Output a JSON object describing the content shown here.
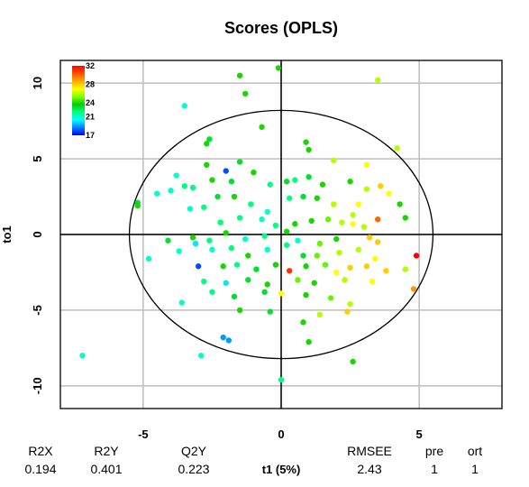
{
  "chart_data": {
    "type": "scatter",
    "title": "Scores (OPLS)",
    "xlabel": "t1 (5%)",
    "ylabel": "to1",
    "xlim": [
      -8,
      8
    ],
    "ylim": [
      -11.5,
      11.5
    ],
    "xticks": [
      -5,
      0,
      5
    ],
    "yticks": [
      -10,
      -5,
      0,
      5,
      10
    ],
    "grid": true,
    "hotelling_ellipse": {
      "cx": 0,
      "cy": 0,
      "rx": 5.5,
      "ry": 8.2
    },
    "colorbar": {
      "placement": "top-left",
      "ticks": [
        32,
        28,
        24,
        21,
        17
      ],
      "min": 17,
      "max": 32,
      "colors": [
        "#0000ff",
        "#0080ff",
        "#00ffff",
        "#00ff80",
        "#00cc00",
        "#80ff00",
        "#ffff00",
        "#ffaa00",
        "#ff5500",
        "#ff0000"
      ]
    },
    "stats_headers": [
      "R2X",
      "R2Y",
      "Q2Y",
      "RMSEE",
      "pre",
      "ort"
    ],
    "stats_values": [
      "0.194",
      "0.401",
      "0.223",
      "2.43",
      "1",
      "1"
    ],
    "points": [
      {
        "x": -7.2,
        "y": -8.0,
        "c": 21
      },
      {
        "x": -3.5,
        "y": 8.5,
        "c": 21
      },
      {
        "x": -2.7,
        "y": 6.0,
        "c": 24
      },
      {
        "x": -2.6,
        "y": 6.3,
        "c": 23
      },
      {
        "x": -1.5,
        "y": 10.5,
        "c": 24
      },
      {
        "x": -1.3,
        "y": 9.3,
        "c": 24
      },
      {
        "x": -0.7,
        "y": 7.1,
        "c": 24
      },
      {
        "x": -0.1,
        "y": 11.0,
        "c": 24
      },
      {
        "x": 0.9,
        "y": 6.1,
        "c": 24
      },
      {
        "x": 1.0,
        "y": 5.6,
        "c": 24
      },
      {
        "x": 3.5,
        "y": 10.2,
        "c": 26
      },
      {
        "x": 4.2,
        "y": 5.7,
        "c": 26
      },
      {
        "x": -3.8,
        "y": 3.9,
        "c": 21
      },
      {
        "x": -3.2,
        "y": 3.1,
        "c": 22
      },
      {
        "x": -5.2,
        "y": 2.1,
        "c": 23
      },
      {
        "x": -5.2,
        "y": 1.9,
        "c": 24
      },
      {
        "x": -4.5,
        "y": 2.7,
        "c": 21
      },
      {
        "x": -4.0,
        "y": 2.9,
        "c": 21
      },
      {
        "x": -3.5,
        "y": 3.2,
        "c": 22
      },
      {
        "x": -2.7,
        "y": 4.6,
        "c": 24
      },
      {
        "x": -2.0,
        "y": 4.2,
        "c": 18
      },
      {
        "x": -1.5,
        "y": 4.8,
        "c": 23
      },
      {
        "x": -2.5,
        "y": 3.6,
        "c": 24
      },
      {
        "x": -1.8,
        "y": 3.5,
        "c": 23
      },
      {
        "x": -1.0,
        "y": 4.1,
        "c": 24
      },
      {
        "x": -0.4,
        "y": 3.3,
        "c": 22
      },
      {
        "x": 0.2,
        "y": 3.5,
        "c": 23
      },
      {
        "x": 0.5,
        "y": 3.6,
        "c": 22
      },
      {
        "x": 1.0,
        "y": 3.8,
        "c": 23
      },
      {
        "x": 1.5,
        "y": 3.3,
        "c": 24
      },
      {
        "x": 1.9,
        "y": 4.9,
        "c": 26
      },
      {
        "x": 2.5,
        "y": 3.5,
        "c": 24
      },
      {
        "x": 3.1,
        "y": 4.6,
        "c": 27
      },
      {
        "x": 3.1,
        "y": 3.0,
        "c": 26
      },
      {
        "x": 3.6,
        "y": 3.2,
        "c": 28
      },
      {
        "x": 3.9,
        "y": 2.7,
        "c": 27
      },
      {
        "x": 4.3,
        "y": 2.0,
        "c": 24
      },
      {
        "x": -3.3,
        "y": 1.7,
        "c": 21
      },
      {
        "x": -2.8,
        "y": 1.8,
        "c": 22
      },
      {
        "x": -2.3,
        "y": 2.5,
        "c": 23
      },
      {
        "x": -1.7,
        "y": 2.5,
        "c": 24
      },
      {
        "x": -1.1,
        "y": 2.0,
        "c": 22
      },
      {
        "x": -0.5,
        "y": 1.5,
        "c": 21
      },
      {
        "x": 0.3,
        "y": 2.4,
        "c": 22
      },
      {
        "x": 0.8,
        "y": 2.5,
        "c": 23
      },
      {
        "x": 1.3,
        "y": 2.4,
        "c": 24
      },
      {
        "x": 1.9,
        "y": 2.0,
        "c": 26
      },
      {
        "x": 2.6,
        "y": 1.3,
        "c": 26
      },
      {
        "x": 2.8,
        "y": 2.0,
        "c": 27
      },
      {
        "x": 3.5,
        "y": 1.0,
        "c": 30
      },
      {
        "x": 4.5,
        "y": 1.1,
        "c": 24
      },
      {
        "x": -2.2,
        "y": 0.8,
        "c": 22
      },
      {
        "x": -1.5,
        "y": 1.1,
        "c": 22
      },
      {
        "x": -0.7,
        "y": 1.0,
        "c": 21
      },
      {
        "x": -0.2,
        "y": 0.6,
        "c": 22
      },
      {
        "x": 0.5,
        "y": 0.7,
        "c": 24
      },
      {
        "x": 1.1,
        "y": 0.9,
        "c": 24
      },
      {
        "x": 1.7,
        "y": 1.0,
        "c": 25
      },
      {
        "x": 2.2,
        "y": 0.8,
        "c": 26
      },
      {
        "x": 2.6,
        "y": 0.7,
        "c": 27
      },
      {
        "x": 3.0,
        "y": 0.5,
        "c": 26
      },
      {
        "x": -3.2,
        "y": -0.2,
        "c": 24
      },
      {
        "x": -2.6,
        "y": -0.4,
        "c": 22
      },
      {
        "x": -2.0,
        "y": 0.1,
        "c": 24
      },
      {
        "x": -1.3,
        "y": -0.3,
        "c": 21
      },
      {
        "x": -0.6,
        "y": -0.1,
        "c": 22
      },
      {
        "x": 0.2,
        "y": 0.2,
        "c": 24
      },
      {
        "x": 0.6,
        "y": -0.4,
        "c": 21
      },
      {
        "x": 1.4,
        "y": -0.6,
        "c": 25
      },
      {
        "x": 2.0,
        "y": -0.3,
        "c": 24
      },
      {
        "x": 3.2,
        "y": -0.2,
        "c": 28
      },
      {
        "x": 3.5,
        "y": -0.5,
        "c": 28
      },
      {
        "x": -4.1,
        "y": -0.4,
        "c": 23
      },
      {
        "x": -3.7,
        "y": -1.1,
        "c": 21
      },
      {
        "x": -3.1,
        "y": -0.6,
        "c": 20
      },
      {
        "x": -2.5,
        "y": -1.0,
        "c": 21
      },
      {
        "x": -1.8,
        "y": -0.9,
        "c": 22
      },
      {
        "x": -1.2,
        "y": -1.4,
        "c": 24
      },
      {
        "x": -0.5,
        "y": -1.0,
        "c": 21
      },
      {
        "x": 0.2,
        "y": -0.7,
        "c": 22
      },
      {
        "x": 0.8,
        "y": -1.4,
        "c": 23
      },
      {
        "x": 1.3,
        "y": -1.4,
        "c": 25
      },
      {
        "x": 2.1,
        "y": -1.2,
        "c": 26
      },
      {
        "x": 2.8,
        "y": -1.0,
        "c": 26
      },
      {
        "x": 3.4,
        "y": -1.6,
        "c": 27
      },
      {
        "x": -4.8,
        "y": -1.6,
        "c": 21
      },
      {
        "x": -3.0,
        "y": -2.1,
        "c": 18
      },
      {
        "x": -2.1,
        "y": -2.1,
        "c": 24
      },
      {
        "x": -1.6,
        "y": -2.0,
        "c": 22
      },
      {
        "x": -0.9,
        "y": -2.3,
        "c": 23
      },
      {
        "x": -0.2,
        "y": -2.0,
        "c": 24
      },
      {
        "x": 0.3,
        "y": -2.4,
        "c": 31
      },
      {
        "x": 0.9,
        "y": -2.1,
        "c": 24
      },
      {
        "x": 1.6,
        "y": -2.0,
        "c": 25
      },
      {
        "x": 2.0,
        "y": -2.5,
        "c": 27
      },
      {
        "x": 2.5,
        "y": -2.2,
        "c": 28
      },
      {
        "x": 3.1,
        "y": -2.1,
        "c": 28
      },
      {
        "x": 3.8,
        "y": -2.4,
        "c": 28
      },
      {
        "x": 4.5,
        "y": -2.3,
        "c": 26
      },
      {
        "x": 4.9,
        "y": -1.4,
        "c": 32
      },
      {
        "x": -2.8,
        "y": -3.1,
        "c": 22
      },
      {
        "x": -2.0,
        "y": -3.2,
        "c": 20
      },
      {
        "x": -1.2,
        "y": -3.0,
        "c": 23
      },
      {
        "x": -0.5,
        "y": -3.3,
        "c": 24
      },
      {
        "x": 0.6,
        "y": -3.0,
        "c": 25
      },
      {
        "x": 1.2,
        "y": -3.2,
        "c": 24
      },
      {
        "x": 2.3,
        "y": -3.0,
        "c": 26
      },
      {
        "x": 3.3,
        "y": -3.1,
        "c": 27
      },
      {
        "x": -3.6,
        "y": -4.5,
        "c": 21
      },
      {
        "x": -2.5,
        "y": -3.8,
        "c": 22
      },
      {
        "x": -1.7,
        "y": -4.1,
        "c": 23
      },
      {
        "x": -0.6,
        "y": -3.8,
        "c": 23
      },
      {
        "x": 0.0,
        "y": -3.9,
        "c": 27
      },
      {
        "x": 0.9,
        "y": -4.0,
        "c": 24
      },
      {
        "x": 1.8,
        "y": -4.2,
        "c": 25
      },
      {
        "x": 2.5,
        "y": -4.6,
        "c": 26
      },
      {
        "x": 4.8,
        "y": -3.6,
        "c": 29
      },
      {
        "x": -1.5,
        "y": -5.0,
        "c": 24
      },
      {
        "x": -0.4,
        "y": -5.1,
        "c": 23
      },
      {
        "x": 0.8,
        "y": -5.8,
        "c": 24
      },
      {
        "x": 1.4,
        "y": -5.3,
        "c": 26
      },
      {
        "x": 2.4,
        "y": -5.1,
        "c": 28
      },
      {
        "x": -2.1,
        "y": -6.8,
        "c": 19
      },
      {
        "x": -1.9,
        "y": -7.0,
        "c": 19
      },
      {
        "x": 1.0,
        "y": -7.1,
        "c": 24
      },
      {
        "x": -2.9,
        "y": -8.0,
        "c": 21
      },
      {
        "x": 2.6,
        "y": -8.4,
        "c": 24
      },
      {
        "x": 0.0,
        "y": -9.6,
        "c": 22
      }
    ]
  }
}
